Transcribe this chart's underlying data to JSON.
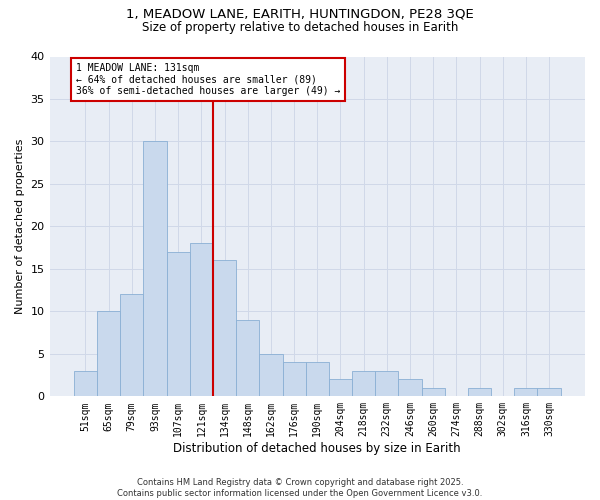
{
  "title_line1": "1, MEADOW LANE, EARITH, HUNTINGDON, PE28 3QE",
  "title_line2": "Size of property relative to detached houses in Earith",
  "xlabel": "Distribution of detached houses by size in Earith",
  "ylabel": "Number of detached properties",
  "categories": [
    "51sqm",
    "65sqm",
    "79sqm",
    "93sqm",
    "107sqm",
    "121sqm",
    "134sqm",
    "148sqm",
    "162sqm",
    "176sqm",
    "190sqm",
    "204sqm",
    "218sqm",
    "232sqm",
    "246sqm",
    "260sqm",
    "274sqm",
    "288sqm",
    "302sqm",
    "316sqm",
    "330sqm"
  ],
  "values": [
    3,
    10,
    12,
    30,
    17,
    18,
    16,
    9,
    5,
    4,
    4,
    2,
    3,
    3,
    2,
    1,
    0,
    1,
    0,
    1,
    1
  ],
  "bar_color": "#c9d9ed",
  "bar_edge_color": "#8aafd4",
  "grid_color": "#d0d8e8",
  "bg_color": "#e8edf5",
  "marker_label": "1 MEADOW LANE: 131sqm",
  "marker_smaller_pct": "64% of detached houses are smaller (89)",
  "marker_larger_pct": "36% of semi-detached houses are larger (49)",
  "annotation_box_color": "#ffffff",
  "annotation_border_color": "#cc0000",
  "marker_line_color": "#cc0000",
  "footer_text": "Contains HM Land Registry data © Crown copyright and database right 2025.\nContains public sector information licensed under the Open Government Licence v3.0.",
  "ylim": [
    0,
    40
  ],
  "yticks": [
    0,
    5,
    10,
    15,
    20,
    25,
    30,
    35,
    40
  ]
}
